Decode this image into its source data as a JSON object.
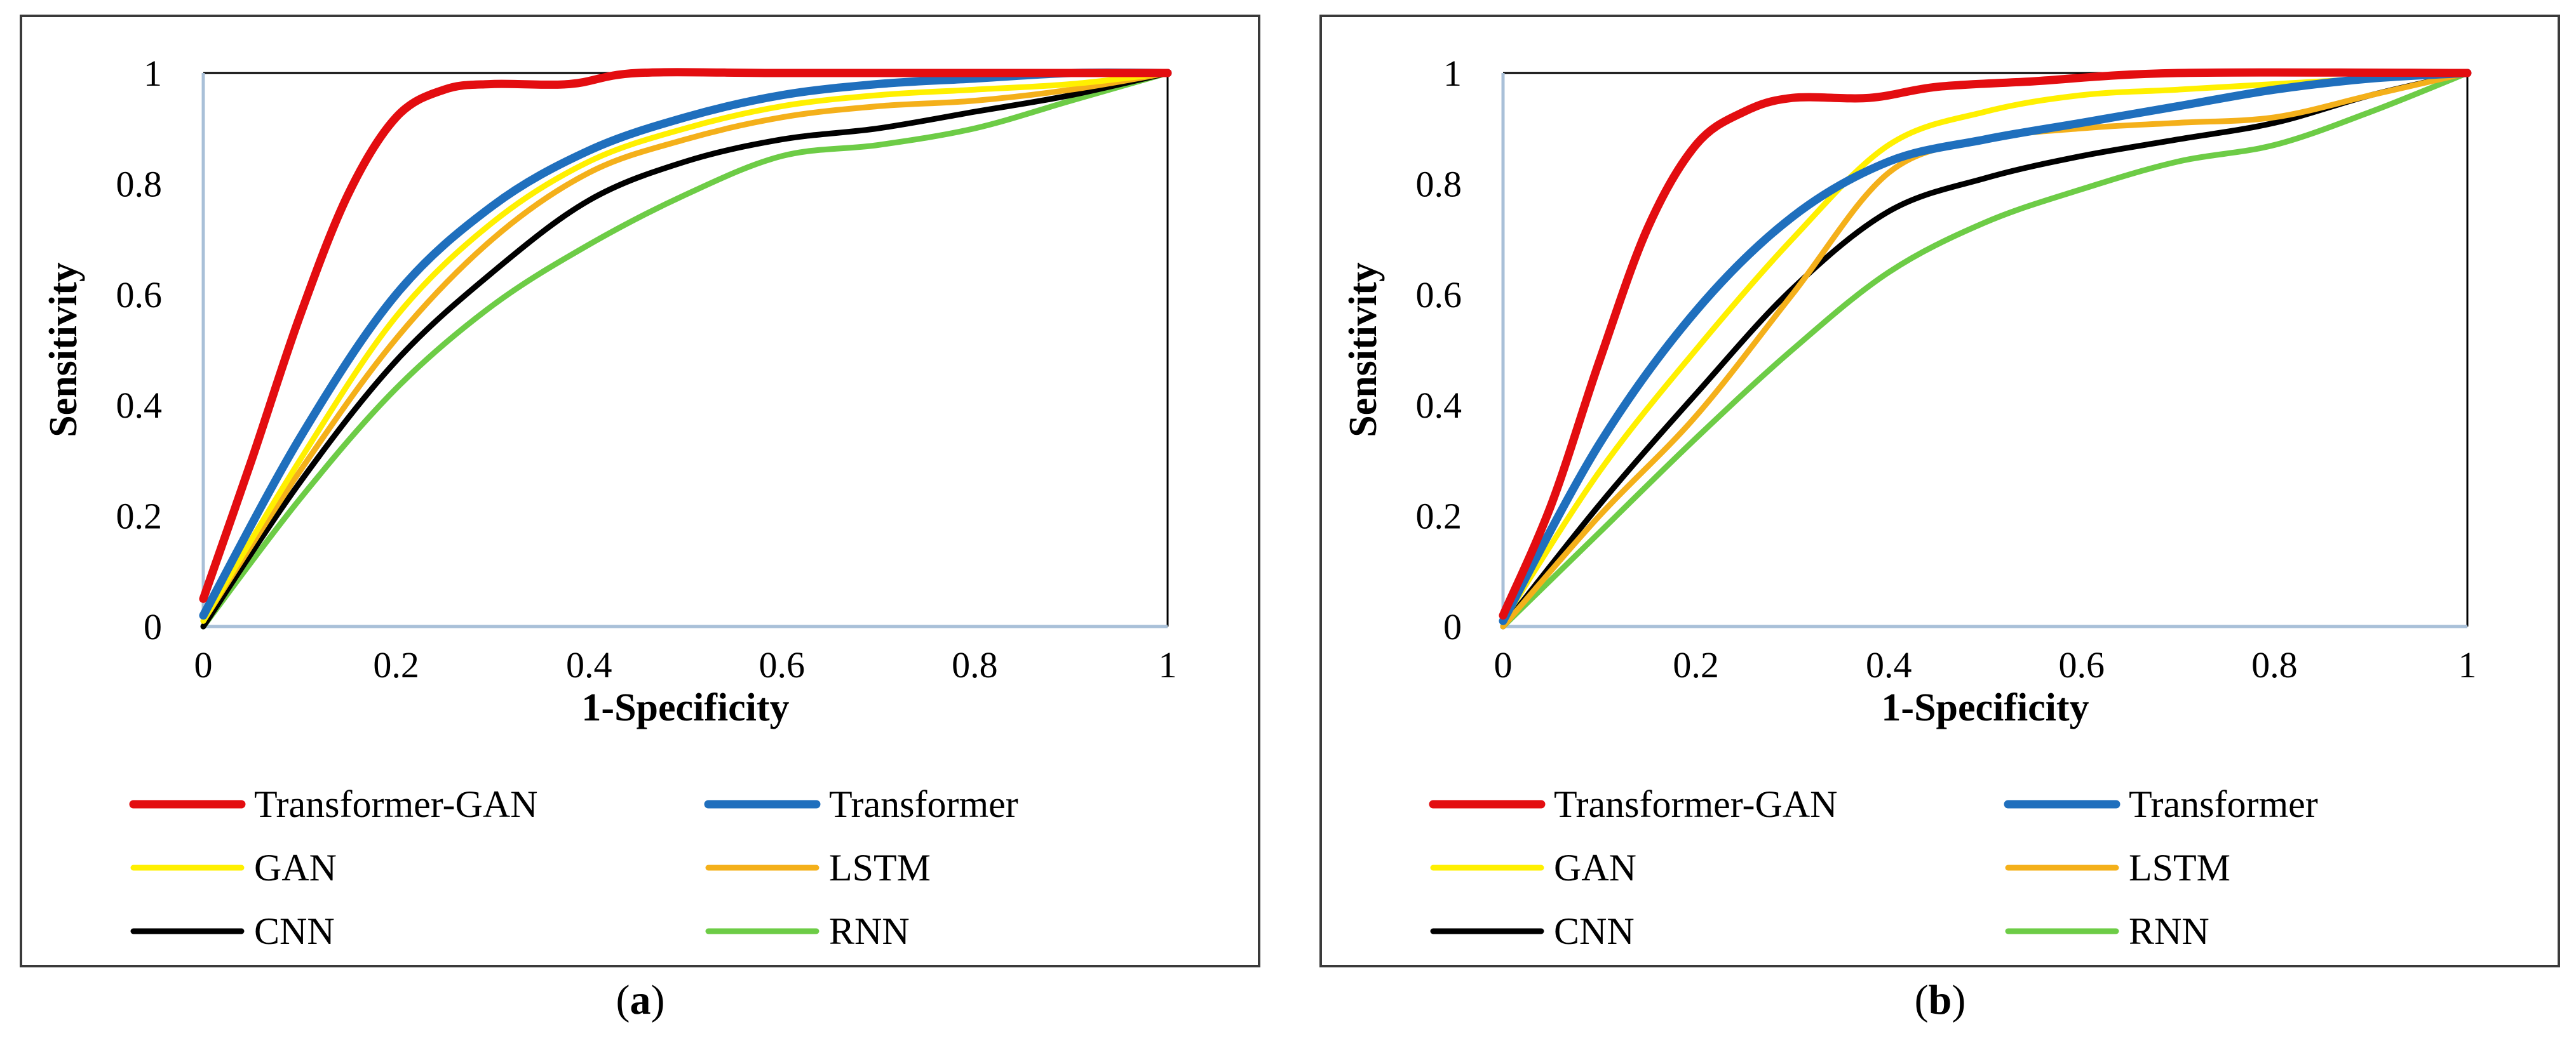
{
  "colors": {
    "Transformer-GAN": "#e30d10",
    "Transformer": "#1f6fbd",
    "GAN": "#fff000",
    "LSTM": "#f4b01a",
    "CNN": "#000000",
    "RNN": "#6dcc46"
  },
  "chart_data": [
    {
      "type": "line",
      "panel_label": "a",
      "xlabel": "1-Specificity",
      "ylabel": "Sensitivity",
      "xlim": [
        0,
        1
      ],
      "ylim": [
        0,
        1
      ],
      "x_ticks": [
        "0",
        "0.2",
        "0.4",
        "0.6",
        "0.8",
        "1"
      ],
      "y_ticks": [
        "0",
        "0.2",
        "0.4",
        "0.6",
        "0.8",
        "1"
      ],
      "series": [
        {
          "name": "Transformer-GAN",
          "points": [
            [
              0,
              0.05
            ],
            [
              0.05,
              0.3
            ],
            [
              0.1,
              0.56
            ],
            [
              0.15,
              0.78
            ],
            [
              0.2,
              0.92
            ],
            [
              0.25,
              0.97
            ],
            [
              0.3,
              0.98
            ],
            [
              0.38,
              0.98
            ],
            [
              0.45,
              1
            ],
            [
              0.6,
              1
            ],
            [
              0.8,
              1
            ],
            [
              1,
              1
            ]
          ]
        },
        {
          "name": "Transformer",
          "points": [
            [
              0,
              0.02
            ],
            [
              0.1,
              0.34
            ],
            [
              0.2,
              0.6
            ],
            [
              0.3,
              0.76
            ],
            [
              0.4,
              0.86
            ],
            [
              0.5,
              0.92
            ],
            [
              0.6,
              0.96
            ],
            [
              0.7,
              0.98
            ],
            [
              0.8,
              0.99
            ],
            [
              0.9,
              1
            ],
            [
              1,
              1
            ]
          ]
        },
        {
          "name": "GAN",
          "points": [
            [
              0,
              0.01
            ],
            [
              0.1,
              0.3
            ],
            [
              0.2,
              0.56
            ],
            [
              0.3,
              0.73
            ],
            [
              0.4,
              0.84
            ],
            [
              0.5,
              0.9
            ],
            [
              0.6,
              0.94
            ],
            [
              0.7,
              0.96
            ],
            [
              0.8,
              0.97
            ],
            [
              0.9,
              0.98
            ],
            [
              1,
              1
            ]
          ]
        },
        {
          "name": "LSTM",
          "points": [
            [
              0,
              0.01
            ],
            [
              0.1,
              0.28
            ],
            [
              0.2,
              0.52
            ],
            [
              0.3,
              0.7
            ],
            [
              0.4,
              0.82
            ],
            [
              0.5,
              0.88
            ],
            [
              0.6,
              0.92
            ],
            [
              0.7,
              0.94
            ],
            [
              0.8,
              0.95
            ],
            [
              0.9,
              0.97
            ],
            [
              1,
              1
            ]
          ]
        },
        {
          "name": "CNN",
          "points": [
            [
              0,
              0
            ],
            [
              0.1,
              0.26
            ],
            [
              0.2,
              0.48
            ],
            [
              0.3,
              0.64
            ],
            [
              0.4,
              0.77
            ],
            [
              0.5,
              0.84
            ],
            [
              0.6,
              0.88
            ],
            [
              0.7,
              0.9
            ],
            [
              0.8,
              0.93
            ],
            [
              0.9,
              0.96
            ],
            [
              1,
              1
            ]
          ]
        },
        {
          "name": "RNN",
          "points": [
            [
              0,
              0
            ],
            [
              0.1,
              0.23
            ],
            [
              0.2,
              0.43
            ],
            [
              0.3,
              0.58
            ],
            [
              0.4,
              0.69
            ],
            [
              0.5,
              0.78
            ],
            [
              0.6,
              0.85
            ],
            [
              0.7,
              0.87
            ],
            [
              0.8,
              0.9
            ],
            [
              0.9,
              0.95
            ],
            [
              1,
              1
            ]
          ]
        }
      ]
    },
    {
      "type": "line",
      "panel_label": "b",
      "xlabel": "1-Specificity",
      "ylabel": "Sensitivity",
      "xlim": [
        0,
        1
      ],
      "ylim": [
        0,
        1
      ],
      "x_ticks": [
        "0",
        "0.2",
        "0.4",
        "0.6",
        "0.8",
        "1"
      ],
      "y_ticks": [
        "0",
        "0.2",
        "0.4",
        "0.6",
        "0.8",
        "1"
      ],
      "series": [
        {
          "name": "Transformer-GAN",
          "points": [
            [
              0,
              0.02
            ],
            [
              0.05,
              0.22
            ],
            [
              0.1,
              0.48
            ],
            [
              0.15,
              0.72
            ],
            [
              0.2,
              0.87
            ],
            [
              0.25,
              0.93
            ],
            [
              0.3,
              0.955
            ],
            [
              0.38,
              0.955
            ],
            [
              0.45,
              0.975
            ],
            [
              0.55,
              0.985
            ],
            [
              0.7,
              1
            ],
            [
              1,
              1
            ]
          ]
        },
        {
          "name": "Transformer",
          "points": [
            [
              0,
              0.01
            ],
            [
              0.1,
              0.33
            ],
            [
              0.2,
              0.57
            ],
            [
              0.3,
              0.74
            ],
            [
              0.4,
              0.84
            ],
            [
              0.5,
              0.88
            ],
            [
              0.6,
              0.91
            ],
            [
              0.7,
              0.94
            ],
            [
              0.8,
              0.97
            ],
            [
              0.9,
              0.99
            ],
            [
              1,
              1
            ]
          ]
        },
        {
          "name": "GAN",
          "points": [
            [
              0,
              0.01
            ],
            [
              0.1,
              0.28
            ],
            [
              0.2,
              0.5
            ],
            [
              0.3,
              0.7
            ],
            [
              0.4,
              0.87
            ],
            [
              0.5,
              0.93
            ],
            [
              0.6,
              0.96
            ],
            [
              0.7,
              0.97
            ],
            [
              0.8,
              0.98
            ],
            [
              0.9,
              0.99
            ],
            [
              1,
              1
            ]
          ]
        },
        {
          "name": "LSTM",
          "points": [
            [
              0,
              0
            ],
            [
              0.1,
              0.2
            ],
            [
              0.2,
              0.38
            ],
            [
              0.3,
              0.6
            ],
            [
              0.4,
              0.82
            ],
            [
              0.5,
              0.88
            ],
            [
              0.6,
              0.9
            ],
            [
              0.7,
              0.91
            ],
            [
              0.8,
              0.92
            ],
            [
              0.9,
              0.96
            ],
            [
              1,
              1
            ]
          ]
        },
        {
          "name": "CNN",
          "points": [
            [
              0,
              0
            ],
            [
              0.1,
              0.22
            ],
            [
              0.2,
              0.42
            ],
            [
              0.3,
              0.61
            ],
            [
              0.4,
              0.75
            ],
            [
              0.5,
              0.81
            ],
            [
              0.6,
              0.85
            ],
            [
              0.7,
              0.88
            ],
            [
              0.8,
              0.91
            ],
            [
              0.9,
              0.96
            ],
            [
              1,
              1
            ]
          ]
        },
        {
          "name": "RNN",
          "points": [
            [
              0,
              0
            ],
            [
              0.1,
              0.17
            ],
            [
              0.2,
              0.34
            ],
            [
              0.3,
              0.5
            ],
            [
              0.4,
              0.64
            ],
            [
              0.5,
              0.73
            ],
            [
              0.6,
              0.79
            ],
            [
              0.7,
              0.84
            ],
            [
              0.8,
              0.87
            ],
            [
              0.9,
              0.93
            ],
            [
              1,
              1
            ]
          ]
        }
      ]
    }
  ]
}
